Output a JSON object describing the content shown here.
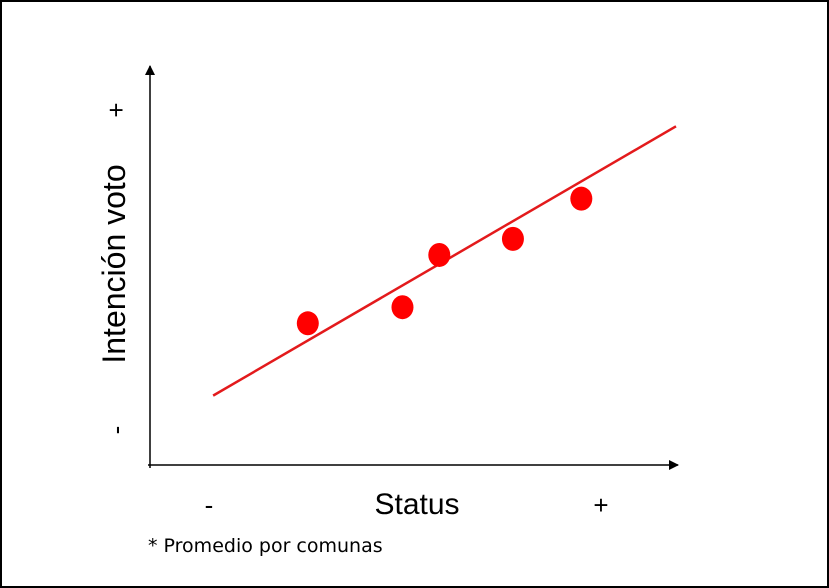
{
  "chart_data": {
    "type": "scatter",
    "title": "",
    "xlabel": "Status",
    "ylabel": "Intención voto",
    "x_min_label": "-",
    "x_max_label": "+",
    "y_min_label": "-",
    "y_max_label": "+",
    "xlim": [
      0,
      10
    ],
    "ylim": [
      0,
      10
    ],
    "points": [
      {
        "x": 3.0,
        "y": 3.6
      },
      {
        "x": 4.8,
        "y": 4.0
      },
      {
        "x": 5.5,
        "y": 5.3
      },
      {
        "x": 6.9,
        "y": 5.7
      },
      {
        "x": 8.2,
        "y": 6.7
      }
    ],
    "trendline": {
      "x": [
        1.2,
        10.0
      ],
      "y": [
        1.8,
        8.5
      ]
    },
    "grid": false,
    "point_color": "#ff0000",
    "line_color": "#e31a1c"
  },
  "footnote": "* Promedio por comunas"
}
